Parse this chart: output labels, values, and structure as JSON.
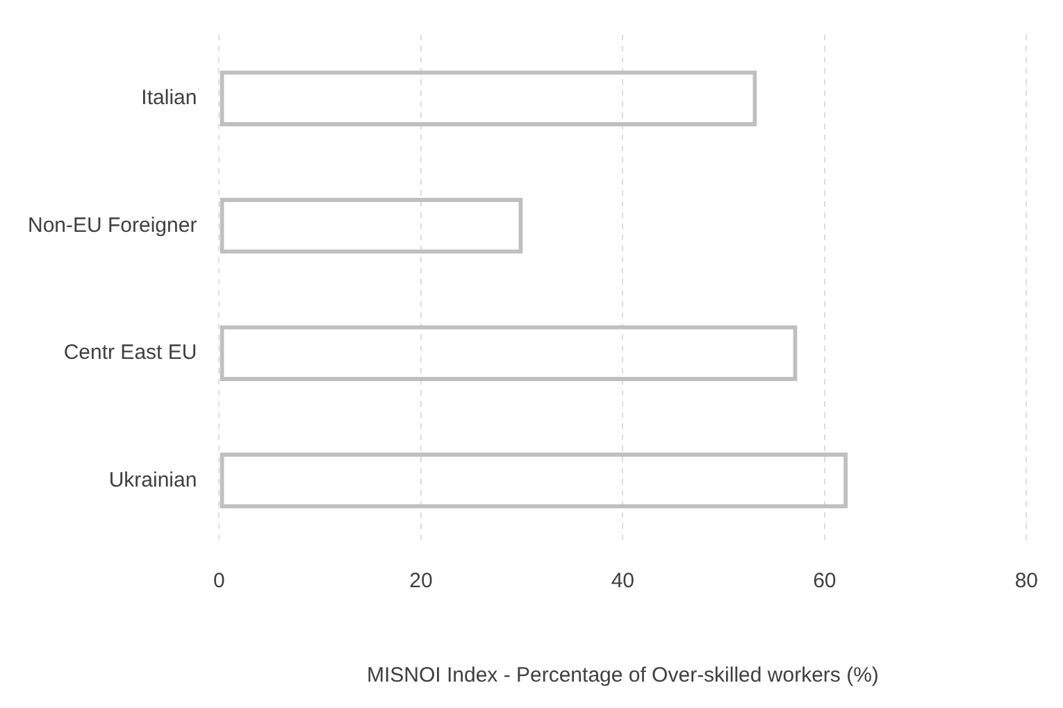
{
  "chart_data": {
    "type": "bar",
    "orientation": "horizontal",
    "categories": [
      "Italian",
      "Non-EU Foreigner",
      "Centr East EU",
      "Ukrainian"
    ],
    "values": [
      53.3,
      30.1,
      57.3,
      62.3
    ],
    "color": "#bfbfbf",
    "xlabel": "MISNOI Index - Percentage of Over-skilled workers (%)",
    "xlim": [
      0,
      80
    ],
    "xticks": [
      0,
      20,
      40,
      60,
      80
    ],
    "grid": "x",
    "legend": false
  }
}
